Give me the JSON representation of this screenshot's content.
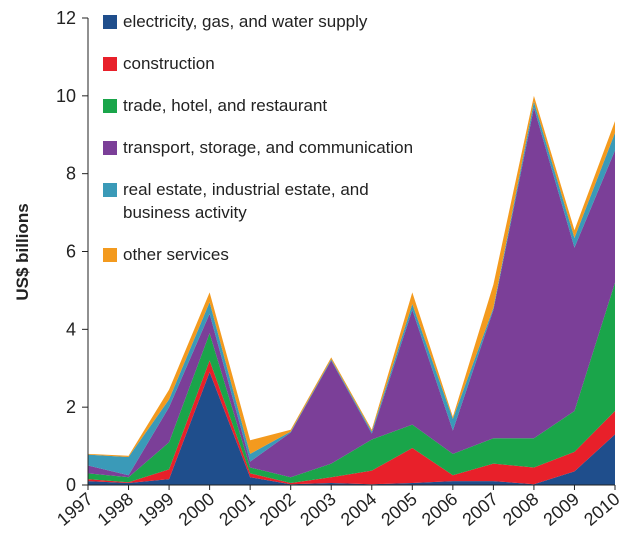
{
  "chart_data": {
    "type": "stacked-area",
    "y_label": "US$ billions",
    "categories": [
      "1997",
      "1998",
      "1999",
      "2000",
      "2001",
      "2002",
      "2003",
      "2004",
      "2005",
      "2006",
      "2007",
      "2008",
      "2009",
      "2010"
    ],
    "ylim": [
      0,
      12
    ],
    "yticks": [
      0,
      2,
      4,
      6,
      8,
      10,
      12
    ],
    "series": [
      {
        "name": "electricity, gas, and water supply",
        "color": "#1f4e8c",
        "values": [
          0.1,
          0.05,
          0.15,
          2.9,
          0.2,
          0.02,
          0.05,
          0.02,
          0.05,
          0.1,
          0.1,
          0.02,
          0.35,
          1.3
        ]
      },
      {
        "name": "construction",
        "color": "#e8202a",
        "values": [
          0.05,
          0.02,
          0.25,
          0.3,
          0.1,
          0.03,
          0.15,
          0.35,
          0.9,
          0.15,
          0.45,
          0.43,
          0.5,
          0.6
        ]
      },
      {
        "name": "trade, hotel, and restaurant",
        "color": "#1aa54a",
        "values": [
          0.15,
          0.13,
          0.7,
          0.7,
          0.15,
          0.15,
          0.35,
          0.8,
          0.6,
          0.55,
          0.65,
          0.75,
          1.05,
          3.3
        ]
      },
      {
        "name": "transport, storage, and communication",
        "color": "#7b3f98",
        "values": [
          0.2,
          0.05,
          0.9,
          0.5,
          0.15,
          1.15,
          2.65,
          0.15,
          2.95,
          0.6,
          3.3,
          8.5,
          4.2,
          3.4
        ]
      },
      {
        "name": "real estate, industrial estate, and business activity",
        "color": "#3a9ab8",
        "values": [
          0.28,
          0.47,
          0.2,
          0.3,
          0.2,
          0.02,
          0.03,
          0.05,
          0.15,
          0.3,
          0.05,
          0.15,
          0.25,
          0.45
        ]
      },
      {
        "name": "other services",
        "color": "#f39a1e",
        "values": [
          0.02,
          0.03,
          0.25,
          0.25,
          0.35,
          0.05,
          0.05,
          0.05,
          0.3,
          0.05,
          0.6,
          0.15,
          0.2,
          0.3
        ]
      }
    ]
  }
}
